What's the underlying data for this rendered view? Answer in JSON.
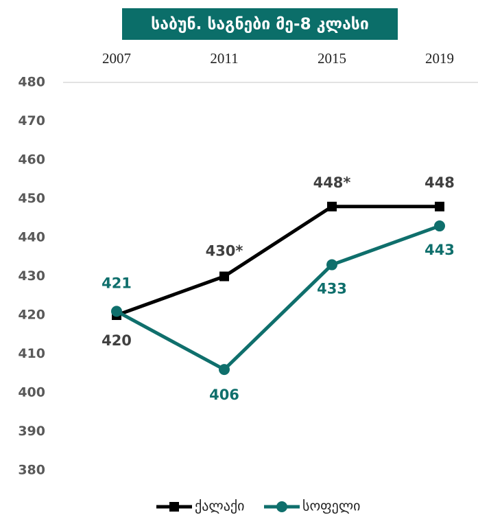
{
  "chart_data": {
    "type": "line",
    "title": "საბუნ. საგნები მე-8 კლასი",
    "categories": [
      "2007",
      "2011",
      "2015",
      "2019"
    ],
    "series": [
      {
        "name": "ქალაქი",
        "color": "#000000",
        "marker": "square",
        "values": [
          420,
          430,
          448,
          448
        ],
        "value_labels": [
          "420",
          "430*",
          "448*",
          "448"
        ]
      },
      {
        "name": "სოფელი",
        "color": "#0f6f6c",
        "marker": "circle",
        "values": [
          421,
          406,
          433,
          443
        ],
        "value_labels": [
          "421",
          "406",
          "433",
          "443"
        ]
      }
    ],
    "ylim": [
      380,
      480
    ],
    "yticks": [
      380,
      390,
      400,
      410,
      420,
      430,
      440,
      450,
      460,
      470,
      480
    ],
    "legend": "bottom"
  }
}
